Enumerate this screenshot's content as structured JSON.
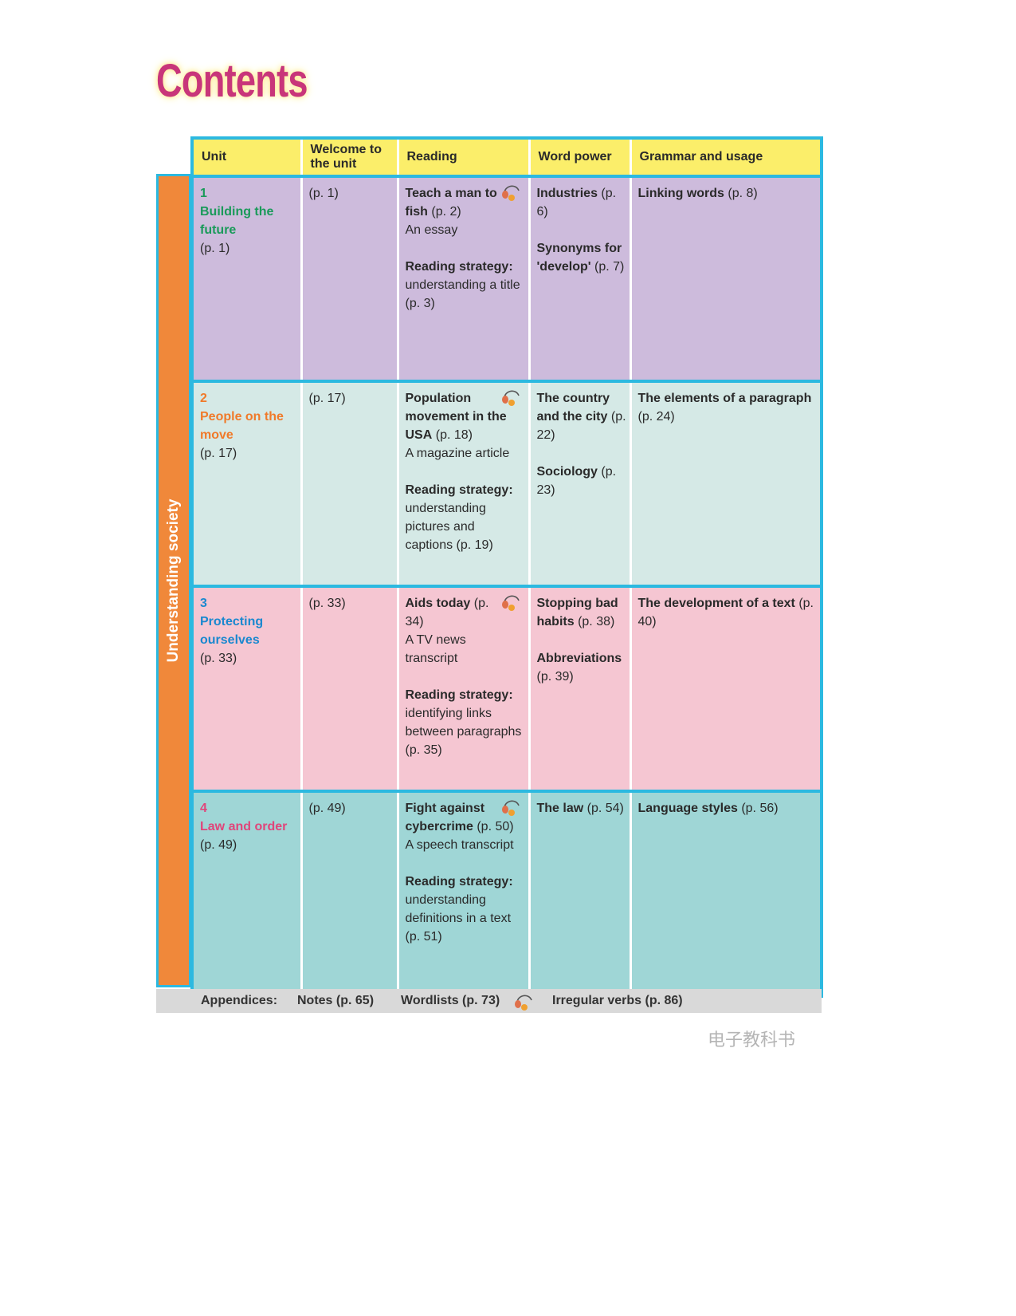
{
  "title": "Contents",
  "side_label": "Understanding society",
  "headers": [
    "Unit",
    "Welcome to the unit",
    "Reading",
    "Word power",
    "Grammar and usage"
  ],
  "colors": {
    "header": "#fbee6a",
    "border": "#2cb9e0",
    "side": "#f0883a"
  },
  "units": [
    {
      "num": "1",
      "name": "Building the future",
      "page": "(p. 1)",
      "color": "#1a9a5a",
      "bg": "#cdbbdc",
      "welcome": "(p. 1)",
      "reading": {
        "title": "Teach a man to fish",
        "page": "(p. 2)",
        "type": "An essay",
        "strategy_label": "Reading strategy:",
        "strategy": "understanding a title (p. 3)"
      },
      "word": [
        {
          "label": "Industries",
          "page": "(p. 6)"
        },
        {
          "label": "Synonyms for 'develop'",
          "page": "(p. 7)"
        }
      ],
      "grammar": {
        "label": "Linking words",
        "page": "(p. 8)"
      }
    },
    {
      "num": "2",
      "name": "People on the move",
      "page": "(p. 17)",
      "color": "#f07a2a",
      "bg": "#d5e9e6",
      "welcome": "(p. 17)",
      "reading": {
        "title": "Population movement in the USA",
        "page": "(p. 18)",
        "type": "A magazine article",
        "strategy_label": "Reading strategy:",
        "strategy": "understanding pictures and captions (p. 19)"
      },
      "word": [
        {
          "label": "The country and the city",
          "page": "(p. 22)"
        },
        {
          "label": "Sociology",
          "page": "(p. 23)"
        }
      ],
      "grammar": {
        "label": "The elements of a paragraph",
        "page": "(p. 24)"
      }
    },
    {
      "num": "3",
      "name": "Protecting ourselves",
      "page": "(p. 33)",
      "color": "#1a88cf",
      "bg": "#f5c6d2",
      "welcome": "(p. 33)",
      "reading": {
        "title": "Aids today",
        "page": "(p. 34)",
        "type": "A TV news transcript",
        "strategy_label": "Reading strategy:",
        "strategy": "identifying links between paragraphs (p. 35)"
      },
      "word": [
        {
          "label": "Stopping bad habits",
          "page": "(p. 38)"
        },
        {
          "label": "Abbreviations",
          "page": "(p. 39)"
        }
      ],
      "grammar": {
        "label": "The development of a text",
        "page": "(p. 40)"
      }
    },
    {
      "num": "4",
      "name": "Law and order",
      "page": "(p. 49)",
      "color": "#e0457a",
      "bg": "#9fd6d6",
      "welcome": "(p. 49)",
      "reading": {
        "title": "Fight against cybercrime",
        "page": "(p. 50)",
        "type": "A speech transcript",
        "strategy_label": "Reading strategy:",
        "strategy": "understanding definitions in a text (p. 51)"
      },
      "word": [
        {
          "label": "The law",
          "page": "(p. 54)"
        }
      ],
      "grammar": {
        "label": "Language styles",
        "page": "(p. 56)"
      }
    }
  ],
  "footer": {
    "label": "Appendices:",
    "notes": "Notes (p. 65)",
    "wordlists": "Wordlists (p. 73)",
    "irregular": "Irregular verbs (p. 86)"
  },
  "watermark": "电子教科书"
}
